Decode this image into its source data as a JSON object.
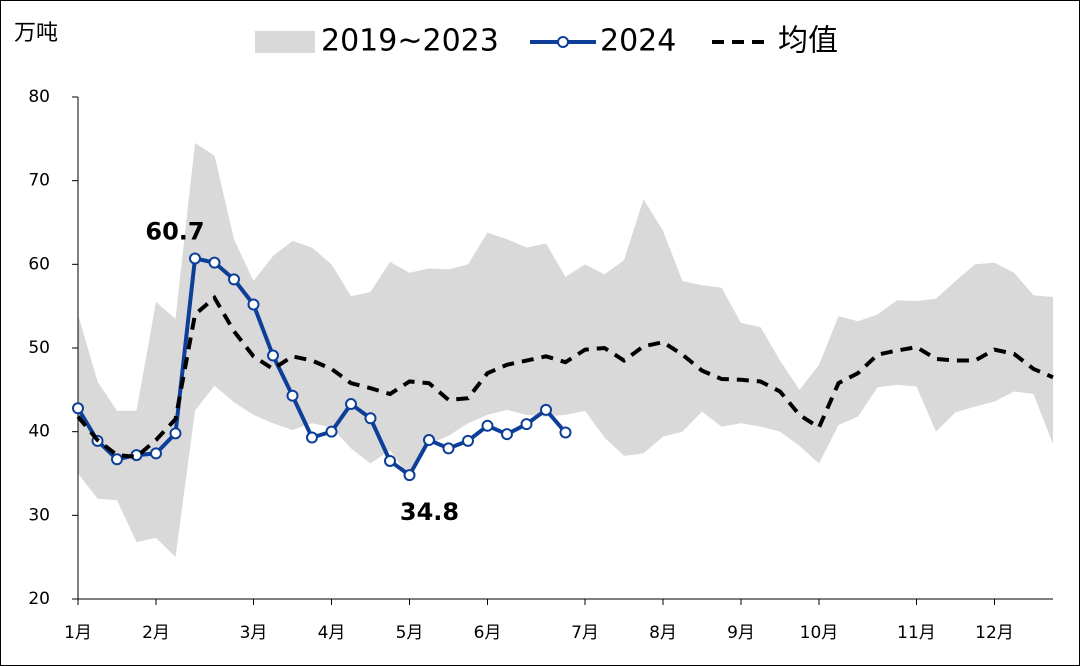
{
  "chart_data": {
    "type": "line",
    "y_label": "万吨",
    "categories": [
      "1月",
      null,
      null,
      null,
      "2月",
      null,
      null,
      null,
      null,
      "3月",
      null,
      null,
      null,
      "4月",
      null,
      null,
      null,
      "5月",
      null,
      null,
      null,
      "6月",
      null,
      null,
      null,
      null,
      "7月",
      null,
      null,
      null,
      "8月",
      null,
      null,
      null,
      "9月",
      null,
      null,
      null,
      "10月",
      null,
      null,
      null,
      null,
      "11月",
      null,
      null,
      null,
      "12月",
      null,
      null,
      null
    ],
    "ylim": [
      20,
      80
    ],
    "yticks": [
      20,
      30,
      40,
      50,
      60,
      70,
      80
    ],
    "legend": "top",
    "series": [
      {
        "name": "2019~2023",
        "type": "band",
        "color": "#d9d9d9",
        "high": [
          54,
          46,
          42.5,
          42.5,
          55.5,
          53.5,
          74.5,
          73,
          63,
          58,
          61,
          62.8,
          62,
          60,
          56.2,
          56.7,
          60.3,
          59,
          59.5,
          59.4,
          60,
          63.8,
          63,
          62,
          62.5,
          58.5,
          60,
          58.8,
          60.5,
          67.8,
          64,
          58,
          57.5,
          57.2,
          53,
          52.5,
          48.5,
          45,
          48,
          53.8,
          53.2,
          54,
          55.7,
          55.6,
          55.9,
          58,
          60,
          60.2,
          59,
          56.3,
          56.1
        ],
        "low": [
          35,
          32,
          31.8,
          26.8,
          27.3,
          25,
          42.5,
          45.5,
          43.5,
          42,
          41,
          40.2,
          41,
          40.5,
          38,
          36.2,
          37.8,
          34.5,
          38.5,
          39.5,
          41,
          42,
          42.6,
          42,
          41.8,
          42,
          42.5,
          39.3,
          37.1,
          37.4,
          39.4,
          40,
          42.4,
          40.6,
          41,
          40.6,
          40,
          38.3,
          36.2,
          40.8,
          41.8,
          45.3,
          45.6,
          45.4,
          40,
          42.3,
          43,
          43.6,
          44.8,
          44.5,
          38.5
        ]
      },
      {
        "name": "2024",
        "type": "line",
        "color": "#0d3f99",
        "markers": true,
        "values": [
          42.8,
          38.9,
          36.7,
          37.2,
          37.4,
          39.8,
          60.7,
          60.2,
          58.2,
          55.2,
          49.1,
          44.3,
          39.3,
          40.0,
          43.3,
          41.6,
          36.5,
          34.8,
          39.0,
          38.0,
          38.9,
          40.7,
          39.7,
          40.9,
          42.6,
          39.9,
          null,
          null,
          null,
          null,
          null,
          null,
          null,
          null,
          null,
          null,
          null,
          null,
          null,
          null,
          null,
          null,
          null,
          null,
          null,
          null,
          null,
          null,
          null,
          null,
          null
        ],
        "value_labels": [
          null,
          null,
          null,
          null,
          null,
          null,
          "60.7",
          null,
          null,
          null,
          null,
          null,
          null,
          null,
          null,
          null,
          null,
          "34.8",
          null,
          null,
          null,
          null,
          null,
          null,
          null,
          null,
          null,
          null,
          null,
          null,
          null,
          null,
          null,
          null,
          null,
          null,
          null,
          null,
          null,
          null,
          null,
          null,
          null,
          null,
          null,
          null,
          null,
          null,
          null,
          null,
          null
        ]
      },
      {
        "name": "均值",
        "type": "dashed",
        "color": "#000000",
        "values": [
          41.8,
          39,
          37.2,
          37,
          39,
          41.5,
          54,
          56,
          52,
          49,
          47.5,
          49,
          48.5,
          47.5,
          45.8,
          45.2,
          44.5,
          46,
          45.8,
          43.8,
          44,
          47,
          48,
          48.5,
          49,
          48.3,
          49.8,
          50,
          48.5,
          50.2,
          50.7,
          49.2,
          47.3,
          46.3,
          46.2,
          46,
          44.8,
          42,
          40.5,
          45.8,
          47,
          49.2,
          49.7,
          50.1,
          48.7,
          48.5,
          48.5,
          49.8,
          49.3,
          47.5,
          46.5
        ]
      }
    ]
  }
}
